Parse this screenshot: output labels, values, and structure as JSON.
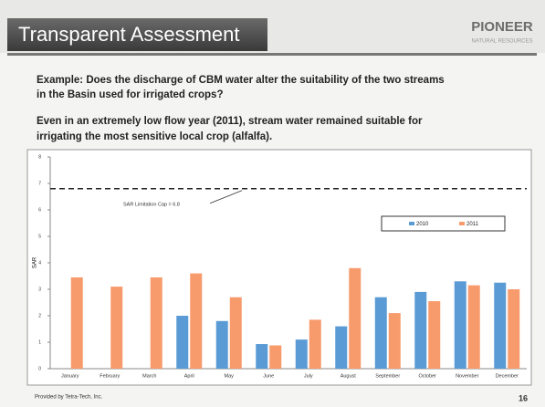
{
  "header": {
    "title": "Transparent Assessment",
    "logo": "PIONEER",
    "logo_sub": "NATURAL RESOURCES"
  },
  "text": [
    "Example:  Does the discharge of CBM water alter the suitability of the two streams",
    "in the Basin used for irrigated crops?",
    "Even in an extremely low flow year (2011), stream water remained suitable for",
    "irrigating the most sensitive local crop (alfalfa)."
  ],
  "footer": {
    "source": "Provided by Tetra-Tech, Inc.",
    "page": "16"
  },
  "chart_data": {
    "type": "bar",
    "categories": [
      "January",
      "February",
      "March",
      "April",
      "May",
      "June",
      "July",
      "August",
      "September",
      "October",
      "November",
      "December"
    ],
    "series": [
      {
        "name": "2010",
        "color": "#5b9bd5",
        "values": [
          null,
          null,
          null,
          2.0,
          1.8,
          0.93,
          1.1,
          1.6,
          2.7,
          2.9,
          3.3,
          3.25
        ]
      },
      {
        "name": "2011",
        "color": "#f79b6d",
        "values": [
          3.45,
          3.1,
          3.45,
          3.6,
          2.7,
          0.88,
          1.85,
          3.8,
          2.1,
          2.55,
          3.15,
          3.0
        ]
      }
    ],
    "y_label": "SAR",
    "ylim": [
      0,
      8
    ],
    "yticks": [
      0,
      1,
      2,
      3,
      4,
      5,
      6,
      7,
      8
    ],
    "cap": 6.8,
    "annotation": "SAR Limitation Cap = 6.8",
    "legend": "upper right"
  }
}
